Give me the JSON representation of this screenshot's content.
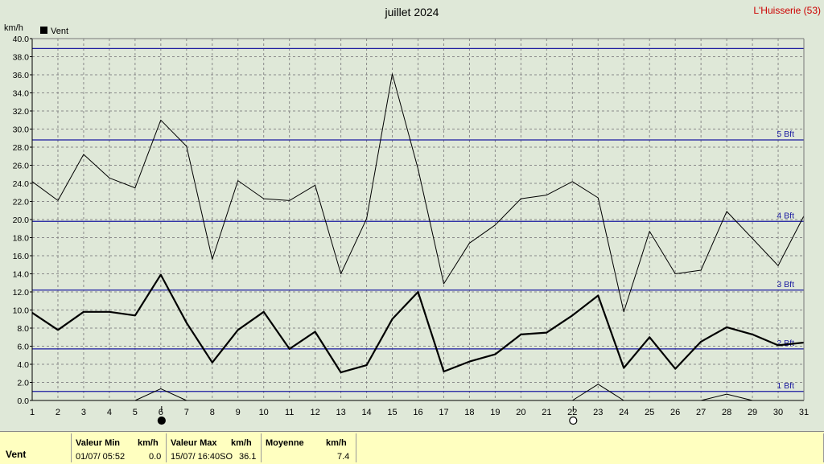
{
  "chart_data": {
    "type": "line",
    "title": "juillet 2024",
    "location": "L'Huisserie (53)",
    "ylabel": "km/h",
    "ylim": [
      0,
      40
    ],
    "yticks": [
      "0.0",
      "2.0",
      "4.0",
      "6.0",
      "8.0",
      "10.0",
      "12.0",
      "14.0",
      "16.0",
      "18.0",
      "20.0",
      "22.0",
      "24.0",
      "26.0",
      "28.0",
      "30.0",
      "32.0",
      "34.0",
      "36.0",
      "38.0",
      "40.0"
    ],
    "x": [
      1,
      2,
      3,
      4,
      5,
      6,
      7,
      8,
      9,
      10,
      11,
      12,
      13,
      14,
      15,
      16,
      17,
      18,
      19,
      20,
      21,
      22,
      23,
      24,
      25,
      26,
      27,
      28,
      29,
      30,
      31
    ],
    "legend": "Vent",
    "legend_position": "top-left",
    "grid": true,
    "series": [
      {
        "name": "Vent",
        "style": "thick",
        "values": [
          9.7,
          7.8,
          9.8,
          9.8,
          9.4,
          13.9,
          8.6,
          4.2,
          7.8,
          9.8,
          5.7,
          7.6,
          3.1,
          3.9,
          9.0,
          12.0,
          3.2,
          4.3,
          5.1,
          7.3,
          7.5,
          9.4,
          11.6,
          3.6,
          7.0,
          3.5,
          6.5,
          8.1,
          7.3,
          6.1,
          6.4
        ]
      },
      {
        "style": "thin",
        "values": [
          24.2,
          22.1,
          27.2,
          24.6,
          23.5,
          31.0,
          28.1,
          15.6,
          24.3,
          22.3,
          22.1,
          23.8,
          14.0,
          20.1,
          36.1,
          25.6,
          12.9,
          17.4,
          19.4,
          22.3,
          22.7,
          24.2,
          22.4,
          9.8,
          18.7,
          14.0,
          14.4,
          20.9,
          17.9,
          14.9,
          20.4
        ]
      },
      {
        "style": "thin",
        "values": [
          null,
          null,
          null,
          null,
          0,
          1.3,
          0,
          null,
          null,
          null,
          null,
          null,
          null,
          null,
          null,
          null,
          null,
          null,
          null,
          null,
          null,
          0,
          1.8,
          0,
          null,
          null,
          0,
          0.7,
          0,
          null,
          null
        ]
      }
    ],
    "beaufort": [
      {
        "label": "1 Bft",
        "value": 1.0
      },
      {
        "label": "2 Bft",
        "value": 5.7
      },
      {
        "label": "3 Bft",
        "value": 12.2
      },
      {
        "label": "4 Bft",
        "value": 19.8
      },
      {
        "label": "5 Bft",
        "value": 28.8
      },
      {
        "label": "",
        "value": 38.9
      }
    ],
    "moon_markers": [
      {
        "day": 6,
        "phase": "new-moon"
      },
      {
        "day": 22,
        "phase": "full-moon"
      }
    ],
    "colors": {
      "background": "#dfe8d8",
      "series": "#000000",
      "beaufort": "#1a1aa0",
      "location": "#cc0000",
      "footer": "#ffffc0"
    }
  },
  "footer": {
    "series_label": "Vent",
    "min_header": "Valeur Min",
    "min_unit": "km/h",
    "min_date": "01/07/  05:52",
    "min_value": "0.0",
    "max_header": "Valeur Max",
    "max_unit": "km/h",
    "max_date": "15/07/  16:40SO",
    "max_value": "36.1",
    "avg_header": "Moyenne",
    "avg_unit": "km/h",
    "avg_value": "7.4"
  }
}
